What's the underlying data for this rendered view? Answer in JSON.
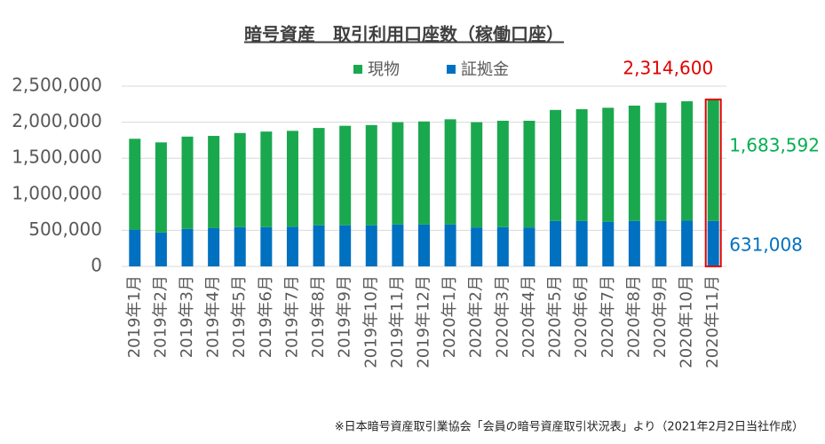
{
  "chart_data": {
    "type": "stacked_bar",
    "title": "暗号資産　取引利用口座数（稼働口座）",
    "note": "※日本暗号資産取引業協会「会員の暗号資産取引状況表」より（2021年2月2日当社作成）",
    "categories": [
      "2019年1月",
      "2019年2月",
      "2019年3月",
      "2019年4月",
      "2019年5月",
      "2019年6月",
      "2019年7月",
      "2019年8月",
      "2019年9月",
      "2019年10月",
      "2019年11月",
      "2019年12月",
      "2020年1月",
      "2020年2月",
      "2020年3月",
      "2020年4月",
      "2020年5月",
      "2020年6月",
      "2020年7月",
      "2020年8月",
      "2020年9月",
      "2020年10月",
      "2020年11月"
    ],
    "series": [
      {
        "name": "証拠金",
        "color": "#0070c0",
        "label_color": "#0070c0",
        "values": [
          510000,
          470000,
          520000,
          530000,
          545000,
          545000,
          550000,
          570000,
          570000,
          570000,
          580000,
          580000,
          580000,
          540000,
          545000,
          540000,
          630000,
          630000,
          620000,
          630000,
          630000,
          635000,
          631008
        ],
        "value_labels": [
          null,
          null,
          null,
          null,
          null,
          null,
          null,
          null,
          null,
          null,
          null,
          null,
          null,
          null,
          null,
          null,
          null,
          null,
          null,
          null,
          null,
          null,
          "631,008"
        ]
      },
      {
        "name": "現物",
        "color": "#1aa84f",
        "label_color": "#00b050",
        "values": [
          1260000,
          1250000,
          1280000,
          1280000,
          1305000,
          1325000,
          1330000,
          1350000,
          1380000,
          1390000,
          1420000,
          1430000,
          1460000,
          1460000,
          1475000,
          1480000,
          1540000,
          1550000,
          1580000,
          1600000,
          1640000,
          1655000,
          1683592
        ],
        "value_labels": [
          null,
          null,
          null,
          null,
          null,
          null,
          null,
          null,
          null,
          null,
          null,
          null,
          null,
          null,
          null,
          null,
          null,
          null,
          null,
          null,
          null,
          null,
          "1,683,592"
        ]
      }
    ],
    "total_label": {
      "value": 2314600,
      "label": "2,314,600",
      "color": "#e00000"
    },
    "ylim": [
      0,
      2500000
    ],
    "yticks": [
      0,
      {
        "value": 500000,
        "label": "500,000"
      },
      {
        "value": 1000000,
        "label": "1,000,000"
      },
      {
        "value": 1500000,
        "label": "1,500,000"
      },
      {
        "value": 2000000,
        "label": "2,000,000"
      },
      {
        "value": 2500000,
        "label": "2,500,000"
      }
    ],
    "grid": true
  }
}
